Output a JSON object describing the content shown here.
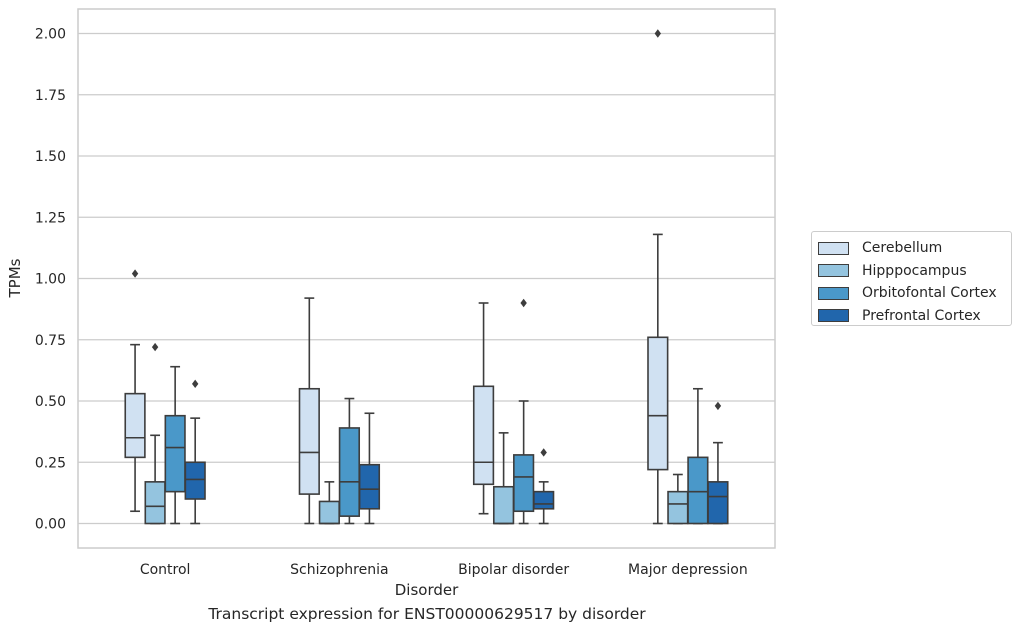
{
  "chart_data": {
    "type": "boxplot",
    "xlabel": "Disorder",
    "ylabel": "TPMs",
    "caption": "Transcript expression for ENST00000629517 by disorder",
    "ylim": [
      -0.1,
      2.1
    ],
    "yticks": [
      "0.00",
      "0.25",
      "0.50",
      "0.75",
      "1.00",
      "1.25",
      "1.50",
      "1.75",
      "2.00"
    ],
    "categories": [
      "Control",
      "Schizophrenia",
      "Bipolar disorder",
      "Major depression"
    ],
    "grid": "horizontal",
    "legend_position": "right",
    "series": [
      {
        "name": "Cerebellum",
        "color": "#d0e1f2",
        "boxes": [
          {
            "whisker_low": 0.05,
            "q1": 0.27,
            "median": 0.35,
            "q3": 0.53,
            "whisker_high": 0.73,
            "outliers": [
              1.02
            ]
          },
          {
            "whisker_low": 0.0,
            "q1": 0.12,
            "median": 0.29,
            "q3": 0.55,
            "whisker_high": 0.92,
            "outliers": []
          },
          {
            "whisker_low": 0.04,
            "q1": 0.16,
            "median": 0.25,
            "q3": 0.56,
            "whisker_high": 0.9,
            "outliers": []
          },
          {
            "whisker_low": 0.0,
            "q1": 0.22,
            "median": 0.44,
            "q3": 0.76,
            "whisker_high": 1.18,
            "outliers": [
              2.0
            ]
          }
        ]
      },
      {
        "name": "Hipppocampus",
        "color": "#94c4df",
        "boxes": [
          {
            "whisker_low": 0.0,
            "q1": 0.0,
            "median": 0.07,
            "q3": 0.17,
            "whisker_high": 0.36,
            "outliers": [
              0.72
            ]
          },
          {
            "whisker_low": 0.0,
            "q1": 0.0,
            "median": 0.0,
            "q3": 0.09,
            "whisker_high": 0.17,
            "outliers": []
          },
          {
            "whisker_low": 0.0,
            "q1": 0.0,
            "median": 0.0,
            "q3": 0.15,
            "whisker_high": 0.37,
            "outliers": []
          },
          {
            "whisker_low": 0.0,
            "q1": 0.0,
            "median": 0.08,
            "q3": 0.13,
            "whisker_high": 0.2,
            "outliers": []
          }
        ]
      },
      {
        "name": "Orbitofontal Cortex",
        "color": "#4a98c9",
        "boxes": [
          {
            "whisker_low": 0.0,
            "q1": 0.13,
            "median": 0.31,
            "q3": 0.44,
            "whisker_high": 0.64,
            "outliers": []
          },
          {
            "whisker_low": 0.0,
            "q1": 0.03,
            "median": 0.17,
            "q3": 0.39,
            "whisker_high": 0.51,
            "outliers": []
          },
          {
            "whisker_low": 0.0,
            "q1": 0.05,
            "median": 0.19,
            "q3": 0.28,
            "whisker_high": 0.5,
            "outliers": [
              0.9
            ]
          },
          {
            "whisker_low": 0.0,
            "q1": 0.0,
            "median": 0.13,
            "q3": 0.27,
            "whisker_high": 0.55,
            "outliers": []
          }
        ]
      },
      {
        "name": "Prefrontal Cortex",
        "color": "#2166ac",
        "boxes": [
          {
            "whisker_low": 0.0,
            "q1": 0.1,
            "median": 0.18,
            "q3": 0.25,
            "whisker_high": 0.43,
            "outliers": [
              0.57
            ]
          },
          {
            "whisker_low": 0.0,
            "q1": 0.06,
            "median": 0.14,
            "q3": 0.24,
            "whisker_high": 0.45,
            "outliers": []
          },
          {
            "whisker_low": 0.0,
            "q1": 0.06,
            "median": 0.08,
            "q3": 0.13,
            "whisker_high": 0.17,
            "outliers": [
              0.29
            ]
          },
          {
            "whisker_low": 0.0,
            "q1": 0.0,
            "median": 0.11,
            "q3": 0.17,
            "whisker_high": 0.33,
            "outliers": [
              0.48
            ]
          }
        ]
      }
    ]
  }
}
